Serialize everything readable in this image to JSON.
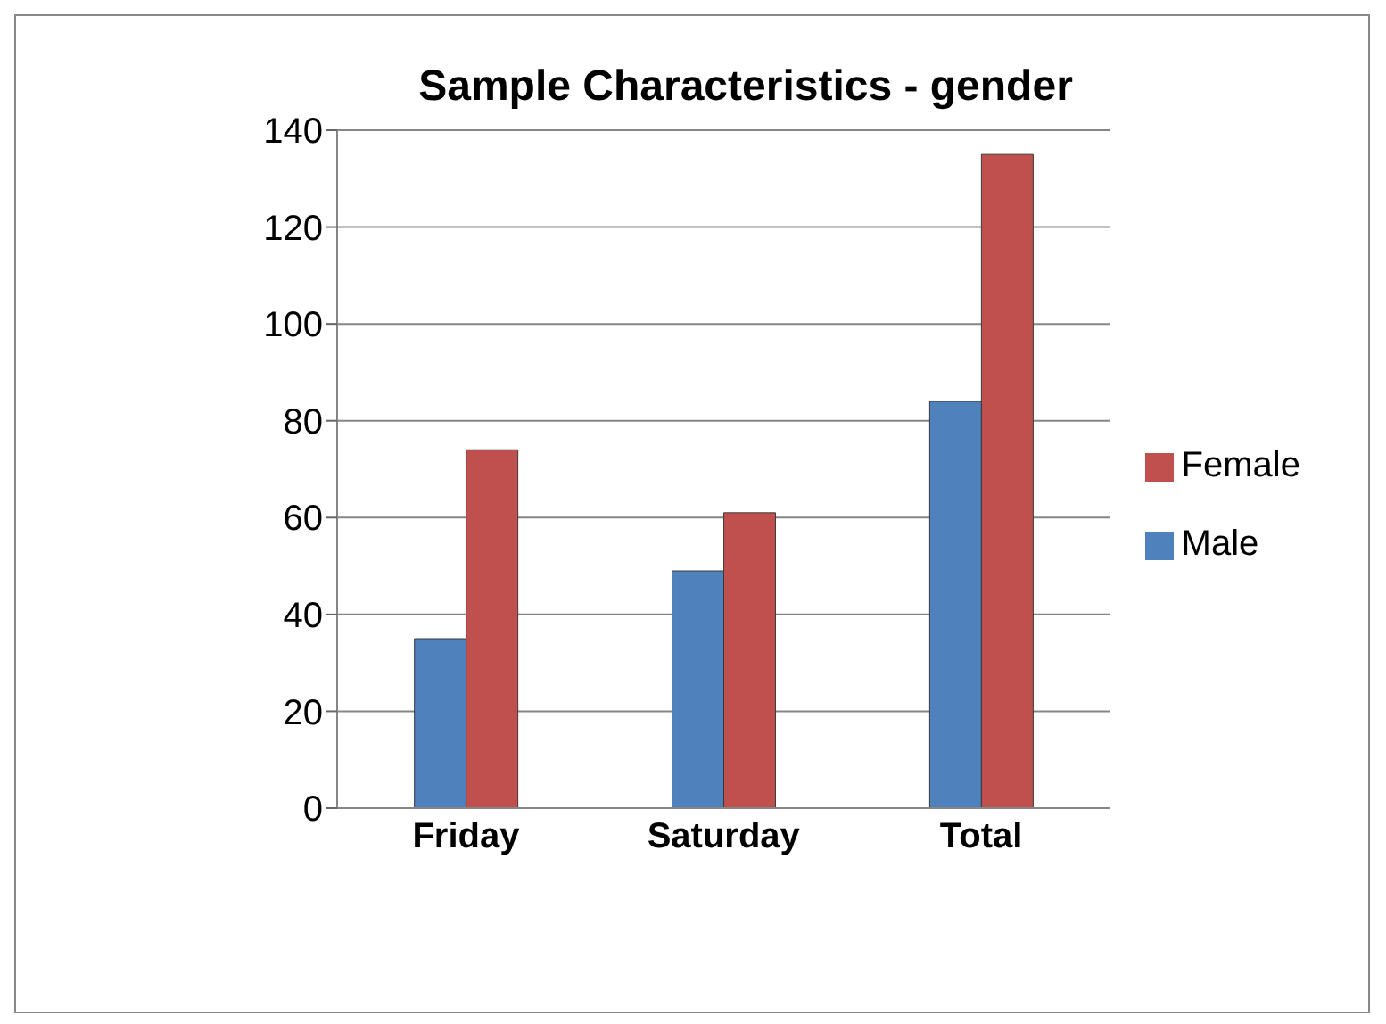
{
  "chart_data": {
    "type": "bar",
    "title": "Sample Characteristics - gender",
    "categories": [
      "Friday",
      "Saturday",
      "Total"
    ],
    "series": [
      {
        "name": "Male",
        "color": "#4f81bd",
        "values": [
          35,
          49,
          84
        ]
      },
      {
        "name": "Female",
        "color": "#c0504d",
        "values": [
          74,
          61,
          135
        ]
      }
    ],
    "ylim": [
      0,
      140
    ],
    "yticks": [
      0,
      20,
      40,
      60,
      80,
      100,
      120,
      140
    ],
    "grid": "y",
    "legend": "right"
  }
}
